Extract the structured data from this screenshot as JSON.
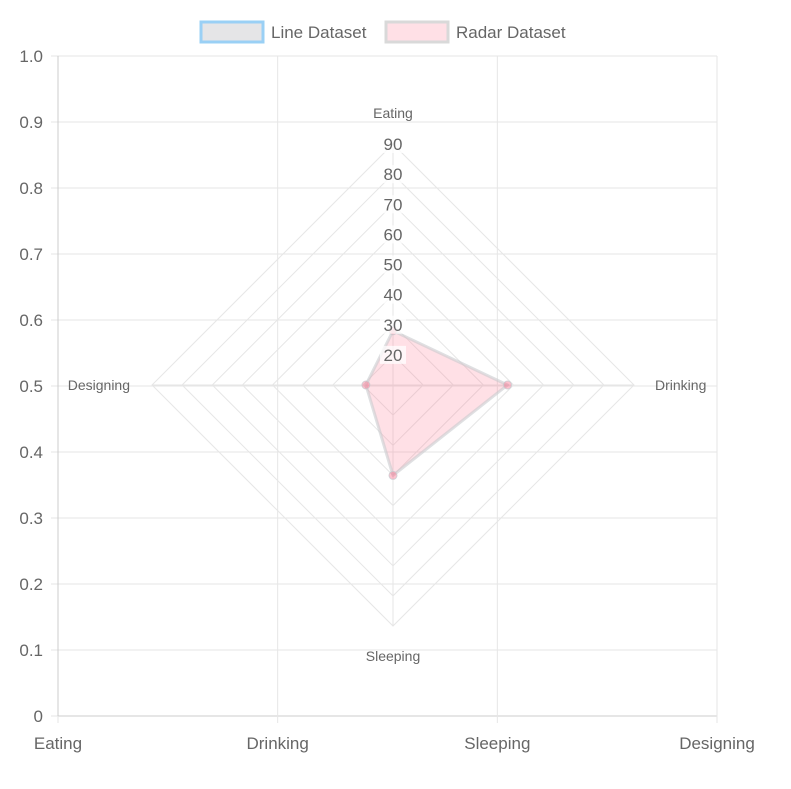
{
  "legend": {
    "items": [
      {
        "label": "Line Dataset",
        "fill": "#e5e5e7",
        "stroke": "#9ad0f5"
      },
      {
        "label": "Radar Dataset",
        "fill": "#ffe0e6",
        "stroke": "#d9d9d9"
      }
    ]
  },
  "chart_data": {
    "type": "radar",
    "grid": true,
    "legend_position": "top",
    "background_axes": {
      "x_ticks": [
        "Eating",
        "Drinking",
        "Sleeping",
        "Designing"
      ],
      "y_ticks": [
        "0",
        "0.1",
        "0.2",
        "0.3",
        "0.4",
        "0.5",
        "0.6",
        "0.7",
        "0.8",
        "0.9",
        "1.0"
      ],
      "ylim": [
        0,
        1
      ]
    },
    "radar": {
      "labels": [
        "Eating",
        "Drinking",
        "Sleeping",
        "Designing"
      ],
      "r_ticks": [
        "20",
        "30",
        "40",
        "50",
        "60",
        "70",
        "80",
        "90"
      ],
      "r_min": 10,
      "r_max": 90,
      "series": [
        {
          "name": "Radar Dataset",
          "values": [
            28,
            48,
            40,
            19
          ],
          "fill": "rgba(255,99,132,0.2)",
          "stroke": "rgba(201,203,207,0.6)",
          "point": "rgba(255,99,132,0.4)"
        }
      ]
    }
  }
}
